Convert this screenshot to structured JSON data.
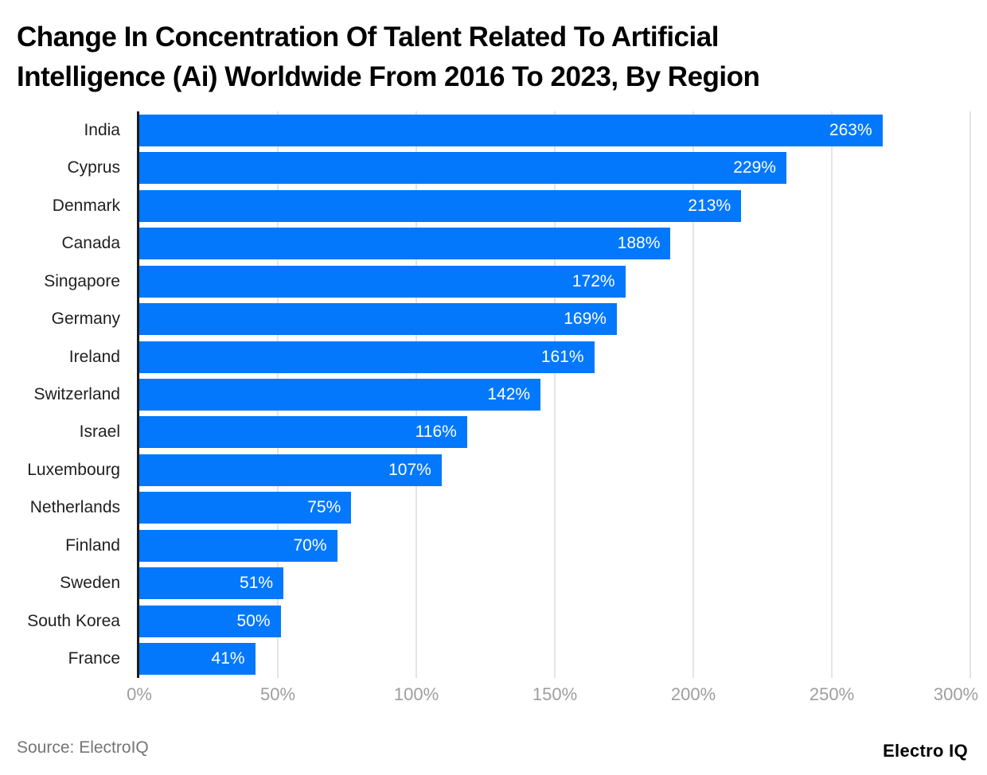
{
  "title": {
    "text": "Change In Concentration Of Talent Related To Artificial Intelligence (Ai) Worldwide From 2016 To 2023, By Region",
    "lines": [
      "Change In Concentration Of Talent Related To Artificial",
      "Intelligence (Ai) Worldwide From 2016 To 2023, By Region"
    ]
  },
  "chart_data": {
    "type": "bar",
    "orientation": "horizontal",
    "title": "Change In Concentration Of Talent Related To Artificial Intelligence (Ai) Worldwide From 2016 To 2023, By Region",
    "categories": [
      "India",
      "Cyprus",
      "Denmark",
      "Canada",
      "Singapore",
      "Germany",
      "Ireland",
      "Switzerland",
      "Israel",
      "Luxembourg",
      "Netherlands",
      "Finland",
      "Sweden",
      "South Korea",
      "France"
    ],
    "values": [
      263,
      229,
      213,
      188,
      172,
      169,
      161,
      142,
      116,
      107,
      75,
      70,
      51,
      50,
      41
    ],
    "value_labels": [
      "263%",
      "229%",
      "213%",
      "188%",
      "172%",
      "169%",
      "161%",
      "142%",
      "116%",
      "107%",
      "75%",
      "70%",
      "51%",
      "50%",
      "41%"
    ],
    "xlabel": "",
    "ylabel": "",
    "xlim": [
      0,
      300
    ],
    "x_tick_labels": [
      "0%",
      "50%",
      "100%",
      "150%",
      "200%",
      "250%",
      "300%"
    ],
    "x_tick_values": [
      0,
      50,
      100,
      150,
      200,
      250,
      300
    ],
    "grid": true,
    "legend": false,
    "bar_color": "#0378fc",
    "value_label_color": "#ffffff",
    "axis_line_color": "#1b1b1b",
    "gridline_color": "#e4e4e4",
    "tick_label_color": "#9e9e9e",
    "category_label_color": "#1f1f1f"
  },
  "footer": {
    "source": "Source: ElectroIQ",
    "brand": "Electro IQ"
  }
}
